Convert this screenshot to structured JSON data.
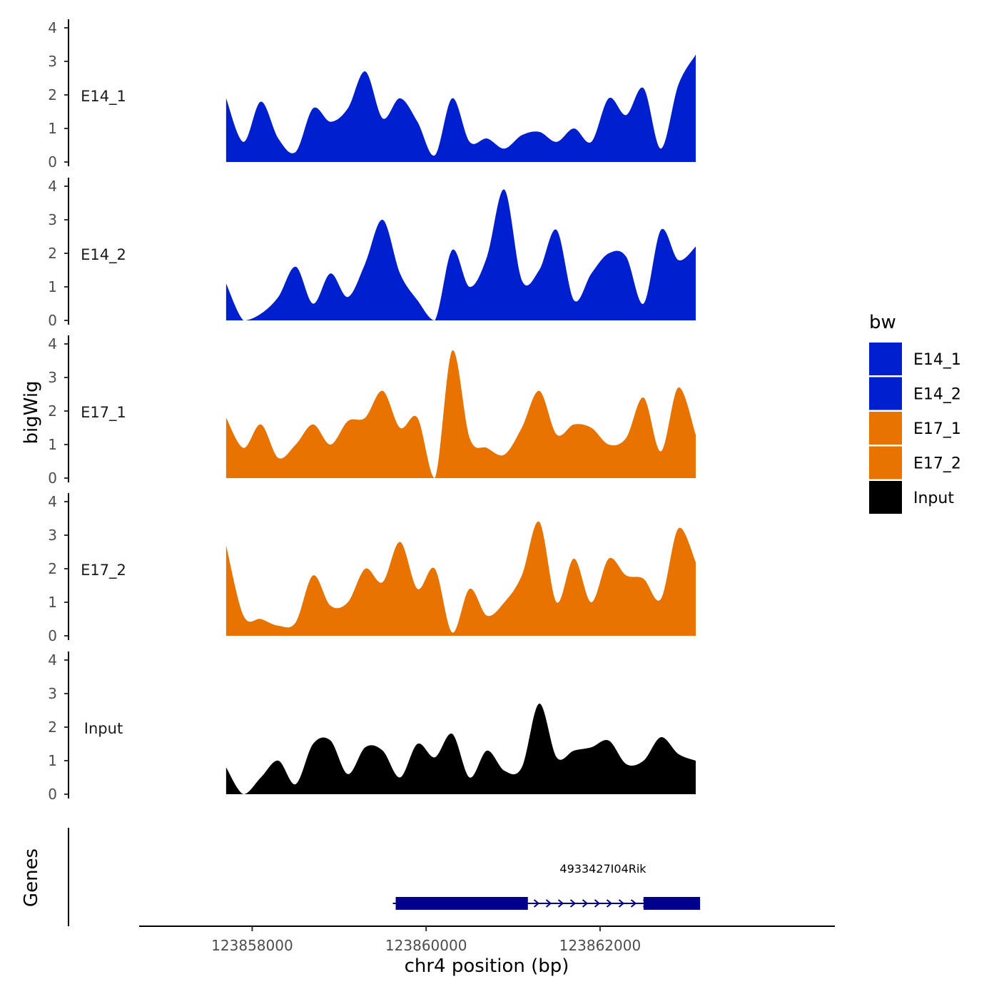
{
  "chart_data": {
    "type": "area",
    "title": "",
    "xlabel": "chr4 position (bp)",
    "ylabel": "bigWig",
    "genes_label": "Genes",
    "xlim": [
      123856700,
      123864700
    ],
    "ylim": [
      0,
      4
    ],
    "yticks": [
      0,
      1,
      2,
      3,
      4
    ],
    "xticks": [
      123858000,
      123860000,
      123862000
    ],
    "xtick_labels": [
      "123858000",
      "123860000",
      "123862000"
    ],
    "legend": {
      "title": "bw",
      "placement": "right",
      "entries": [
        {
          "label": "E14_1",
          "color": "#0020D0"
        },
        {
          "label": "E14_2",
          "color": "#0020D0"
        },
        {
          "label": "E17_1",
          "color": "#E87300"
        },
        {
          "label": "E17_2",
          "color": "#E87300"
        },
        {
          "label": "Input",
          "color": "#000000"
        }
      ]
    },
    "x": [
      123857700,
      123857900,
      123858100,
      123858300,
      123858500,
      123858700,
      123858900,
      123859100,
      123859300,
      123859500,
      123859700,
      123859900,
      123860100,
      123860300,
      123860500,
      123860700,
      123860900,
      123861100,
      123861300,
      123861500,
      123861700,
      123861900,
      123862100,
      123862300,
      123862500,
      123862700,
      123862900,
      123863100
    ],
    "series": [
      {
        "name": "E14_1",
        "color": "#0020D0",
        "values": [
          1.9,
          0.6,
          1.8,
          0.7,
          0.3,
          1.6,
          1.2,
          1.6,
          2.7,
          1.3,
          1.9,
          1.2,
          0.2,
          1.9,
          0.6,
          0.7,
          0.4,
          0.8,
          0.9,
          0.6,
          1.0,
          0.6,
          1.9,
          1.4,
          2.2,
          0.4,
          2.3,
          3.2
        ]
      },
      {
        "name": "E14_2",
        "color": "#0020D0",
        "values": [
          1.1,
          0.0,
          0.2,
          0.7,
          1.6,
          0.5,
          1.4,
          0.7,
          1.7,
          3.0,
          1.4,
          0.6,
          0.0,
          2.1,
          1.0,
          1.9,
          3.9,
          1.2,
          1.5,
          2.7,
          0.6,
          1.4,
          2.0,
          1.9,
          0.5,
          2.7,
          1.8,
          2.2
        ]
      },
      {
        "name": "E17_1",
        "color": "#E87300",
        "values": [
          1.8,
          0.9,
          1.6,
          0.6,
          1.0,
          1.6,
          1.0,
          1.7,
          1.8,
          2.6,
          1.5,
          1.8,
          0.0,
          3.8,
          1.2,
          0.9,
          0.7,
          1.5,
          2.6,
          1.3,
          1.6,
          1.5,
          1.0,
          1.2,
          2.4,
          0.8,
          2.7,
          1.3
        ]
      },
      {
        "name": "E17_2",
        "color": "#E87300",
        "values": [
          2.7,
          0.6,
          0.5,
          0.3,
          0.4,
          1.8,
          0.9,
          1.0,
          2.0,
          1.6,
          2.8,
          1.4,
          2.0,
          0.1,
          1.4,
          0.6,
          1.0,
          1.8,
          3.4,
          1.0,
          2.3,
          1.0,
          2.3,
          1.8,
          1.7,
          1.1,
          3.2,
          2.2
        ]
      },
      {
        "name": "Input",
        "color": "#000000",
        "values": [
          0.8,
          0.0,
          0.5,
          1.0,
          0.3,
          1.5,
          1.6,
          0.6,
          1.4,
          1.3,
          0.5,
          1.5,
          1.1,
          1.8,
          0.5,
          1.3,
          0.7,
          0.8,
          2.7,
          1.1,
          1.3,
          1.4,
          1.6,
          0.9,
          1.0,
          1.7,
          1.2,
          1.0
        ]
      }
    ],
    "gene": {
      "name": "4933427I04Rik",
      "start": 123859650,
      "end": 123863150,
      "strand": "+",
      "exons": [
        [
          123859650,
          123861170
        ],
        [
          123862500,
          123863150
        ]
      ]
    }
  }
}
